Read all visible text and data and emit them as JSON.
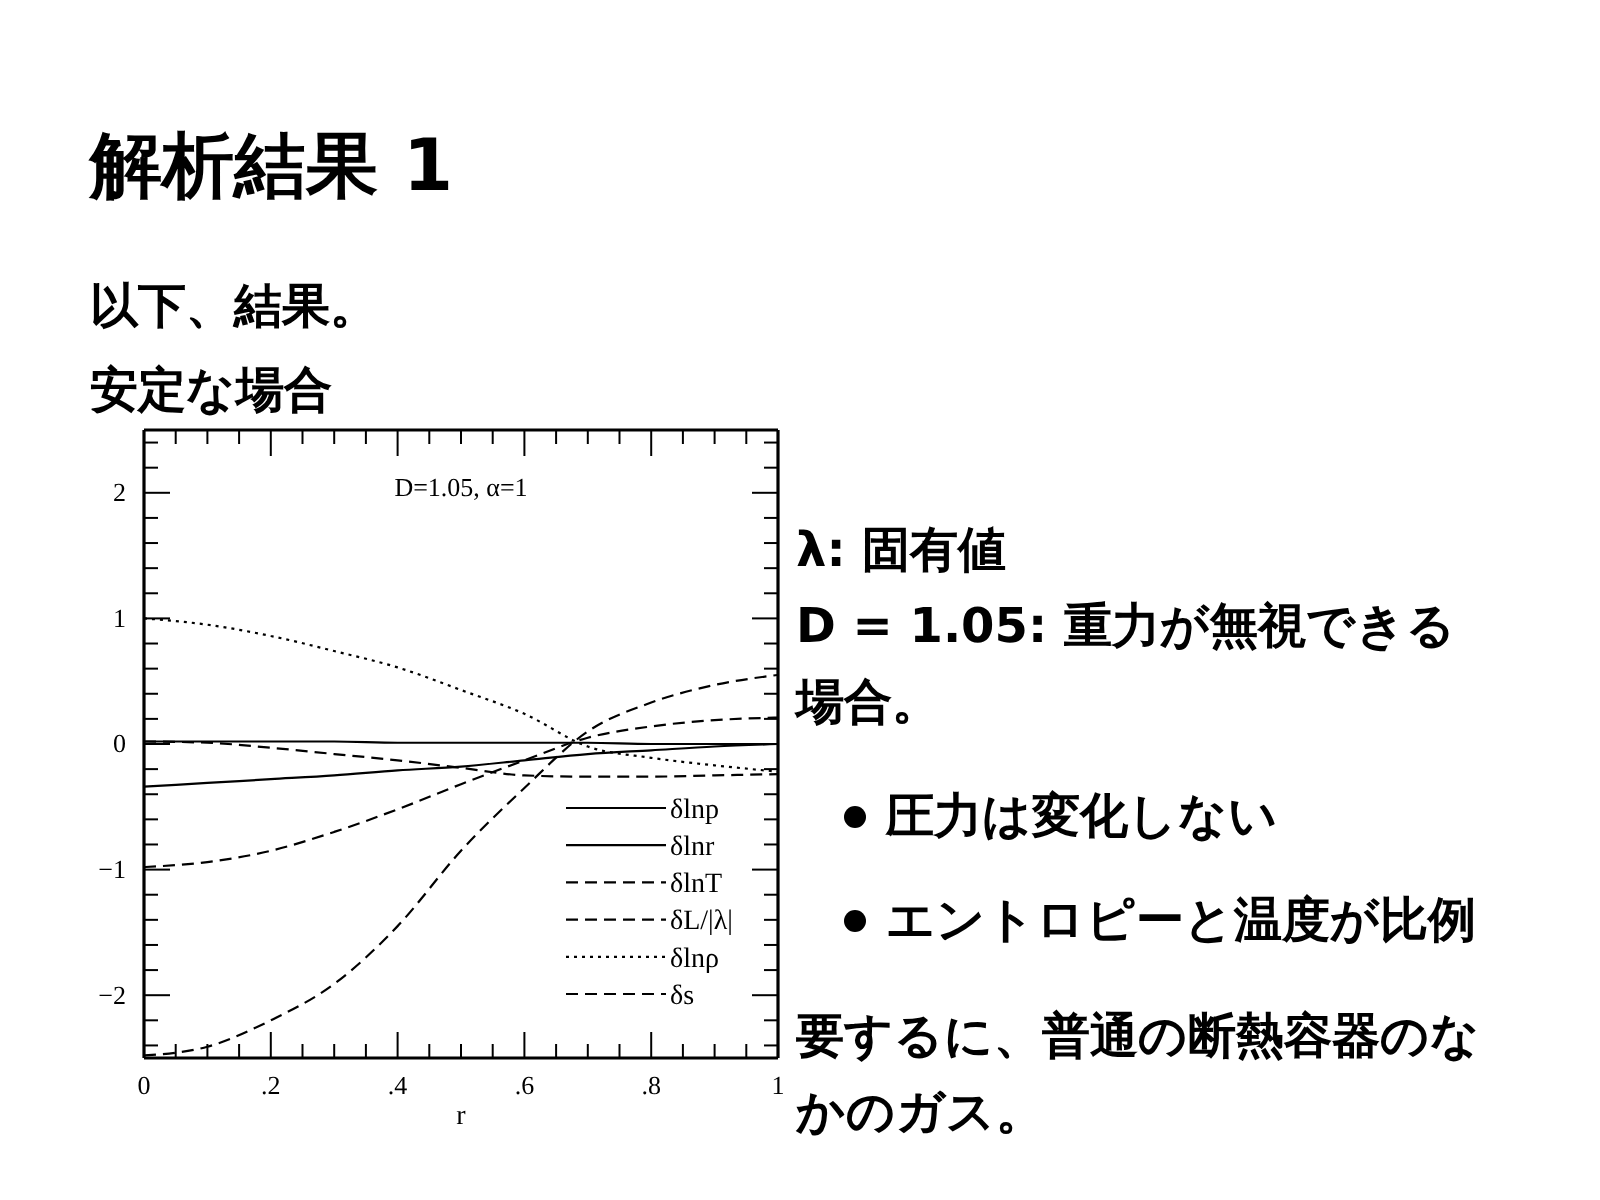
{
  "chart_data": {
    "type": "line",
    "title": "解析結果 1",
    "subtitle": "以下、結果。",
    "xlabel": "r",
    "x": [
      0,
      0.1,
      0.2,
      0.3,
      0.4,
      0.5,
      0.6,
      0.7,
      0.8,
      0.9,
      1
    ],
    "series": [
      {
        "name": "δlnp",
        "color": "#000000",
        "line_style": "solid",
        "values": [
          0.02,
          0.02,
          0.02,
          0.02,
          0.01,
          0.01,
          0.01,
          0.01,
          0,
          0,
          0
        ]
      },
      {
        "name": "δlnr",
        "color": "#000000",
        "line_style": "solid",
        "values": [
          -0.34,
          -0.31,
          -0.28,
          -0.25,
          -0.21,
          -0.18,
          -0.13,
          -0.08,
          -0.05,
          -0.02,
          0
        ]
      },
      {
        "name": "δlnT",
        "color": "#000000",
        "line_style": "dashed",
        "values": [
          -0.98,
          -0.94,
          -0.85,
          -0.7,
          -0.52,
          -0.32,
          -0.13,
          0.05,
          0.14,
          0.19,
          0.21
        ]
      },
      {
        "name": "δL/|λ|",
        "color": "#000000",
        "line_style": "dashed",
        "values": [
          0.02,
          0.01,
          -0.03,
          -0.08,
          -0.13,
          -0.19,
          -0.25,
          -0.26,
          -0.26,
          -0.25,
          -0.24
        ]
      },
      {
        "name": "δlnρ",
        "color": "#000000",
        "line_style": "dotted",
        "values": [
          1,
          0.95,
          0.86,
          0.74,
          0.61,
          0.43,
          0.24,
          -0.02,
          -0.11,
          -0.17,
          -0.22
        ]
      },
      {
        "name": "δs",
        "color": "#000000",
        "line_style": "dashed",
        "values": [
          -2.48,
          -2.41,
          -2.2,
          -1.91,
          -1.45,
          -0.85,
          -0.35,
          0.1,
          0.33,
          0.47,
          0.55
        ]
      }
    ],
    "xlim": [
      0,
      1
    ],
    "ylim": [
      -2.5,
      2.5
    ],
    "xticks": [
      0,
      {
        "value": 0.05,
        "label": null
      },
      {
        "value": 0.1,
        "label": null
      },
      {
        "value": 0.15,
        "label": null
      },
      {
        "value": 0.2,
        "label": ".2"
      },
      {
        "value": 0.25,
        "label": null
      },
      {
        "value": 0.3,
        "label": null
      },
      {
        "value": 0.35,
        "label": null
      },
      {
        "value": 0.4,
        "label": ".4"
      },
      {
        "value": 0.45,
        "label": null
      },
      {
        "value": 0.5,
        "label": null
      },
      {
        "value": 0.55,
        "label": null
      },
      {
        "value": 0.6,
        "label": ".6"
      },
      {
        "value": 0.65,
        "label": null
      },
      {
        "value": 0.7,
        "label": null
      },
      {
        "value": 0.75,
        "label": null
      },
      {
        "value": 0.8,
        "label": ".8"
      },
      {
        "value": 0.85,
        "label": null
      },
      {
        "value": 0.9,
        "label": null
      },
      {
        "value": 0.95,
        "label": null
      },
      1
    ],
    "yticks": [
      {
        "value": -2.4,
        "label": null
      },
      {
        "value": -2.2,
        "label": null
      },
      {
        "value": -2,
        "label": "−2"
      },
      {
        "value": -1.8,
        "label": null
      },
      {
        "value": -1.6,
        "label": null
      },
      {
        "value": -1.4,
        "label": null
      },
      {
        "value": -1.2,
        "label": null
      },
      {
        "value": -1,
        "label": "−1"
      },
      {
        "value": -0.8,
        "label": null
      },
      {
        "value": -0.6,
        "label": null
      },
      {
        "value": -0.4,
        "label": null
      },
      {
        "value": -0.2,
        "label": null
      },
      0,
      {
        "value": 0.2,
        "label": null
      },
      {
        "value": 0.4,
        "label": null
      },
      {
        "value": 0.6,
        "label": null
      },
      {
        "value": 0.8,
        "label": null
      },
      1,
      {
        "value": 1.2,
        "label": null
      },
      {
        "value": 1.4,
        "label": null
      },
      {
        "value": 1.6,
        "label": null
      },
      {
        "value": 1.8,
        "label": null
      },
      2,
      {
        "value": 2.2,
        "label": null
      },
      {
        "value": 2.4,
        "label": null
      }
    ],
    "legend": "bottom right",
    "annotations": [
      "安定な場合",
      "D=1.05, α=1",
      "λ: 固有値",
      "D = 1.05: 重力が無視できる場合。",
      "圧力は変化しない",
      "エントロピーと温度が比例",
      "要するに、普通の断熱容器のなかのガス。"
    ]
  }
}
